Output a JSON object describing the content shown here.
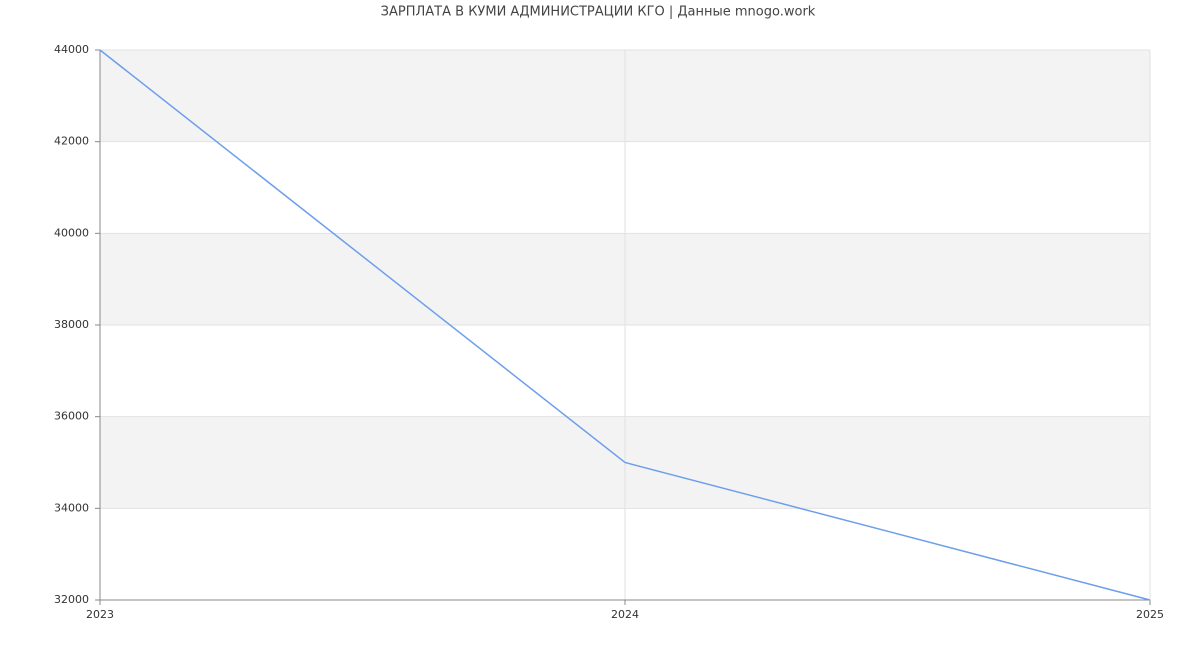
{
  "chart_data": {
    "type": "line",
    "title": "ЗАРПЛАТА В КУМИ АДМИНИСТРАЦИИ КГО | Данные mnogo.work",
    "x": [
      2023,
      2024,
      2025
    ],
    "values": [
      44000,
      35000,
      32000
    ],
    "color": "#6d9eeb",
    "xlim": [
      2023,
      2025
    ],
    "xticks": [
      2023,
      2024,
      2025
    ],
    "ylim": [
      32000,
      44000
    ],
    "yticks": [
      32000,
      34000,
      36000,
      38000,
      40000,
      42000,
      44000
    ],
    "grid": true
  }
}
